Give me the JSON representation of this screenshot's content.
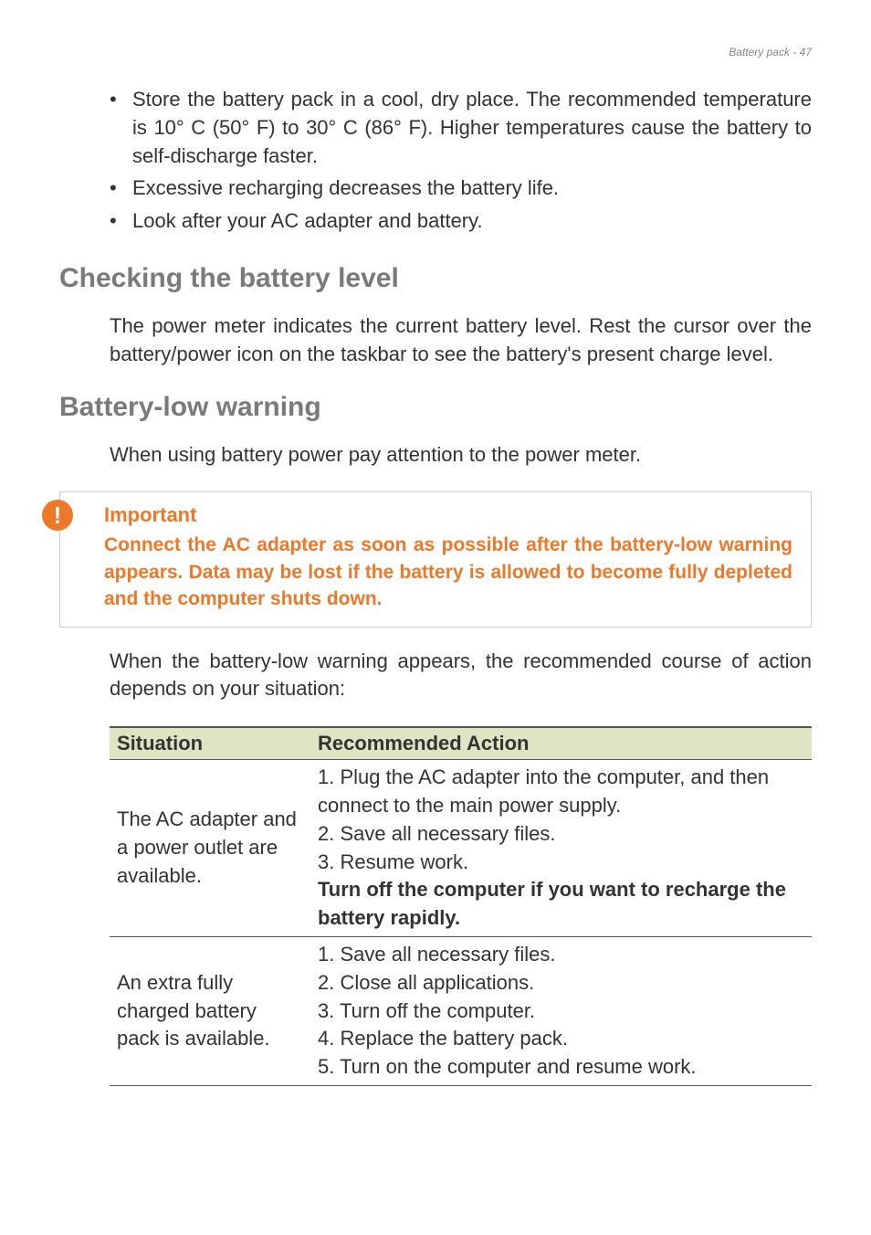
{
  "header": {
    "text": "Battery pack - 47"
  },
  "introBullets": [
    "Store the battery pack in a cool, dry place. The recommended temperature is 10° C (50° F) to 30° C (86° F). Higher temperatures cause the battery to self-discharge faster.",
    "Excessive recharging decreases the battery life.",
    "Look after your AC adapter and battery."
  ],
  "section1": {
    "heading": "Checking the battery level",
    "body": "The power meter indicates the current battery level. Rest the cursor over the battery/power icon on the taskbar to see the battery's present charge level."
  },
  "section2": {
    "heading": "Battery-low warning",
    "body": "When using battery power pay attention to the power meter."
  },
  "callout": {
    "iconGlyph": "!",
    "title": "Important",
    "body": "Connect the AC adapter as soon as possible after the battery-low warning appears. Data may be lost if the battery is allowed to become fully depleted and the computer shuts down."
  },
  "preTablePara": "When the battery-low warning appears, the recommended course of action depends on your situation:",
  "table": {
    "headers": [
      "Situation",
      "Recommended Action"
    ],
    "rows": [
      {
        "situation": "The AC adapter and a power outlet are available.",
        "actionLines": [
          {
            "text": "1. Plug the AC adapter into the computer, and then connect to the main power supply.",
            "bold": false
          },
          {
            "text": "2. Save all necessary files.",
            "bold": false
          },
          {
            "text": "3. Resume work.",
            "bold": false
          },
          {
            "text": "Turn off the computer if you want to recharge the battery rapidly.",
            "bold": true
          }
        ]
      },
      {
        "situation": "An extra fully charged battery pack is available.",
        "actionLines": [
          {
            "text": "1. Save all necessary files.",
            "bold": false
          },
          {
            "text": "2. Close all applications.",
            "bold": false
          },
          {
            "text": "3. Turn off the computer.",
            "bold": false
          },
          {
            "text": "4. Replace the battery pack.",
            "bold": false
          },
          {
            "text": "5. Turn on the computer and resume work.",
            "bold": false
          }
        ]
      }
    ]
  },
  "colors": {
    "accentOrange": "#ec7828",
    "headingGray": "#7a7a7a",
    "tableHeaderBg": "#dfe5c3",
    "textColor": "#333333",
    "borderGray": "#cccccc"
  }
}
